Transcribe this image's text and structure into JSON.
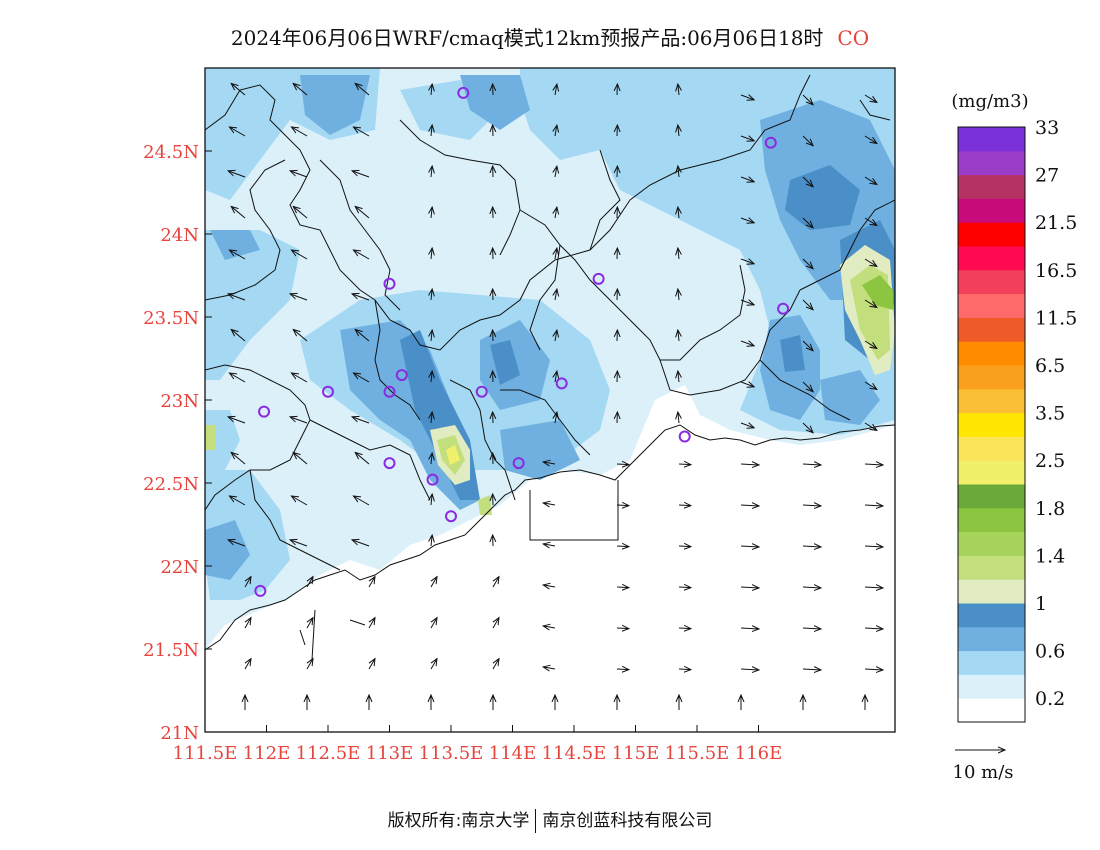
{
  "title": {
    "main": "2024年06月06日WRF/cmaq模式12km预报产品:06月06日18时",
    "species": "CO"
  },
  "map": {
    "lon_range": [
      111.5,
      117.0
    ],
    "lat_range": [
      21.0,
      25.0
    ],
    "y_ticks": [
      {
        "lat": 24.5,
        "label": "24.5N"
      },
      {
        "lat": 24.0,
        "label": "24N"
      },
      {
        "lat": 23.5,
        "label": "23.5N"
      },
      {
        "lat": 23.0,
        "label": "23N"
      },
      {
        "lat": 22.5,
        "label": "22.5N"
      },
      {
        "lat": 22.0,
        "label": "22N"
      },
      {
        "lat": 21.5,
        "label": "21.5N"
      },
      {
        "lat": 21.0,
        "label": "21N"
      }
    ],
    "x_ticks": [
      {
        "lon": 111.5,
        "label": "111.5E"
      },
      {
        "lon": 112.0,
        "label": "112E"
      },
      {
        "lon": 112.5,
        "label": "112.5E"
      },
      {
        "lon": 113.0,
        "label": "113E"
      },
      {
        "lon": 113.5,
        "label": "113.5E"
      },
      {
        "lon": 114.0,
        "label": "114E"
      },
      {
        "lon": 114.5,
        "label": "114.5E"
      },
      {
        "lon": 115.0,
        "label": "115E"
      },
      {
        "lon": 115.5,
        "label": "115.5E"
      },
      {
        "lon": 116.0,
        "label": "116E"
      }
    ],
    "stations": [
      [
        113.6,
        24.85
      ],
      [
        116.1,
        24.55
      ],
      [
        113.0,
        23.7
      ],
      [
        114.7,
        23.73
      ],
      [
        116.2,
        23.55
      ],
      [
        112.5,
        23.05
      ],
      [
        113.1,
        23.15
      ],
      [
        113.0,
        23.05
      ],
      [
        113.75,
        23.05
      ],
      [
        114.4,
        23.1
      ],
      [
        111.98,
        22.93
      ],
      [
        115.4,
        22.78
      ],
      [
        113.0,
        22.62
      ],
      [
        113.35,
        22.52
      ],
      [
        114.05,
        22.62
      ],
      [
        113.5,
        22.3
      ],
      [
        111.95,
        21.85
      ]
    ]
  },
  "colorbar": {
    "unit": "(mg/m3)",
    "colors": [
      "#ffffff",
      "#dcf0fa",
      "#a5d9f3",
      "#6fb0e0",
      "#4a8fc7",
      "#e1ecc3",
      "#c3df7d",
      "#a6d35c",
      "#8cc641",
      "#6ba83a",
      "#f0f06a",
      "#fbe35a",
      "#ffe600",
      "#fbbf35",
      "#f9a01e",
      "#ff8c00",
      "#f05a28",
      "#ff6a6a",
      "#f2405a",
      "#ff0a50",
      "#ff0000",
      "#c80a7a",
      "#b43264",
      "#9b3cc8",
      "#7b2fd6"
    ],
    "labels": [
      {
        "after_index": 1,
        "text": "0.2"
      },
      {
        "after_index": 3,
        "text": "0.6"
      },
      {
        "after_index": 5,
        "text": "1"
      },
      {
        "after_index": 7,
        "text": "1.4"
      },
      {
        "after_index": 9,
        "text": "1.8"
      },
      {
        "after_index": 11,
        "text": "2.5"
      },
      {
        "after_index": 13,
        "text": "3.5"
      },
      {
        "after_index": 15,
        "text": "6.5"
      },
      {
        "after_index": 17,
        "text": "11.5"
      },
      {
        "after_index": 19,
        "text": "16.5"
      },
      {
        "after_index": 21,
        "text": "21.5"
      },
      {
        "after_index": 23,
        "text": "27"
      },
      {
        "after_index": 25,
        "text": "33"
      }
    ]
  },
  "wind_legend": {
    "label": "10 m/s"
  },
  "footer": {
    "copyright": "版权所有:南京大学",
    "company": "南京创蓝科技有限公司"
  }
}
